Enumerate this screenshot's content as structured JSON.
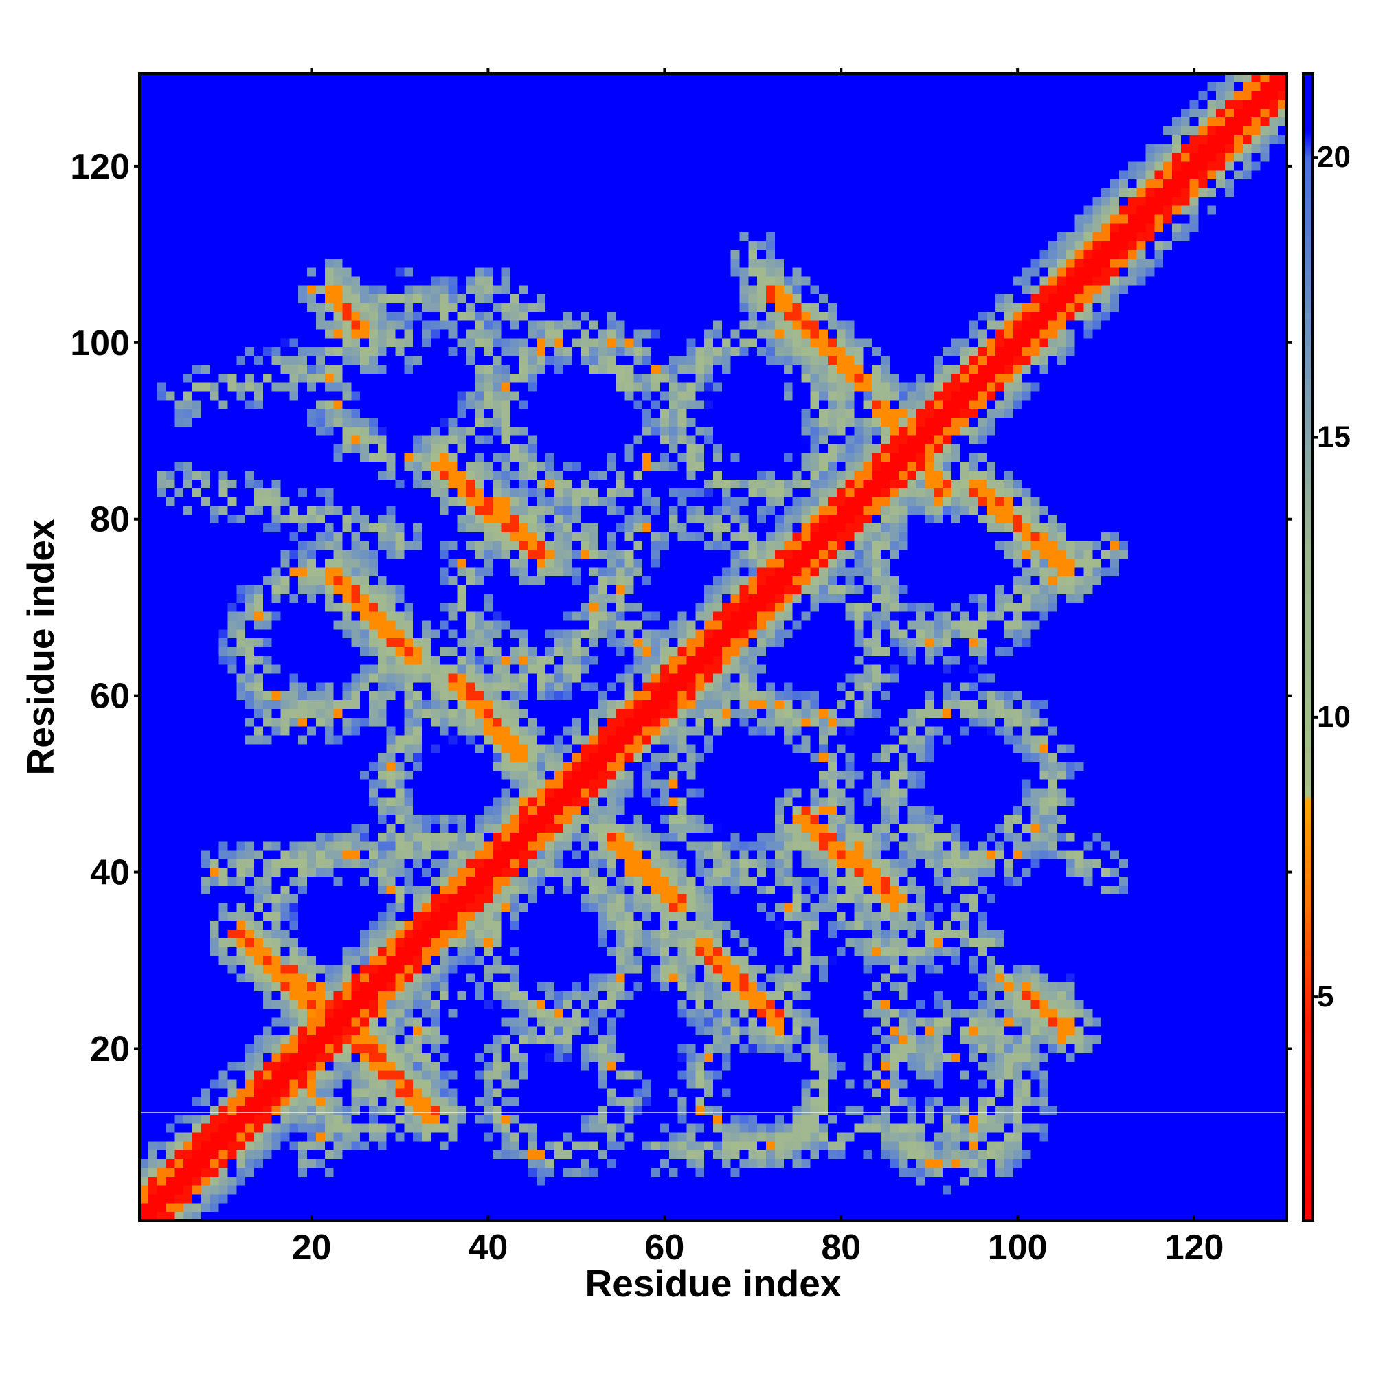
{
  "chart_data": {
    "type": "heatmap",
    "title": "",
    "xlabel": "Residue index",
    "ylabel": "Residue index",
    "n_residues": 130,
    "xlim": [
      1,
      130
    ],
    "ylim": [
      1,
      130
    ],
    "x_ticks": [
      20,
      40,
      60,
      80,
      100,
      120
    ],
    "y_ticks": [
      20,
      40,
      60,
      80,
      100,
      120
    ],
    "colorbar": {
      "ticks": [
        5,
        10,
        15,
        20
      ],
      "range": [
        1,
        21.5
      ],
      "label": ""
    },
    "colorscale": [
      {
        "value": 1.0,
        "color": "#ff0000"
      },
      {
        "value": 4.5,
        "color": "#ff1a00"
      },
      {
        "value": 6.5,
        "color": "#ff7000"
      },
      {
        "value": 8.5,
        "color": "#ffa500"
      },
      {
        "value": 8.6,
        "color": "#a8bf8a"
      },
      {
        "value": 13.0,
        "color": "#9fb692"
      },
      {
        "value": 17.0,
        "color": "#6f93c2"
      },
      {
        "value": 20.0,
        "color": "#4a6fe0"
      },
      {
        "value": 20.5,
        "color": "#0000ff"
      },
      {
        "value": 21.5,
        "color": "#0000ff"
      }
    ],
    "background_value": 21.5,
    "diagonal_band": {
      "core_halfwidth": 1.2,
      "orange_halfwidth": 2.2,
      "halo_halfwidth": 5.0
    },
    "loops": [
      {
        "cx": 31,
        "cy": 96,
        "r": 9
      },
      {
        "cx": 21,
        "cy": 66,
        "r": 8
      },
      {
        "cx": 23,
        "cy": 34,
        "r": 8
      },
      {
        "cx": 26,
        "cy": 18,
        "r": 7
      },
      {
        "cx": 51,
        "cy": 92,
        "r": 9
      },
      {
        "cx": 45,
        "cy": 72,
        "r": 8
      },
      {
        "cx": 37,
        "cy": 50,
        "r": 8
      },
      {
        "cx": 48,
        "cy": 32,
        "r": 8
      },
      {
        "cx": 48,
        "cy": 15,
        "r": 7
      },
      {
        "cx": 71,
        "cy": 92,
        "r": 9
      },
      {
        "cx": 63,
        "cy": 72,
        "r": 8
      },
      {
        "cx": 70,
        "cy": 50,
        "r": 9
      },
      {
        "cx": 68,
        "cy": 32,
        "r": 8
      },
      {
        "cx": 71,
        "cy": 16,
        "r": 7
      },
      {
        "cx": 76,
        "cy": 65,
        "r": 8
      },
      {
        "cx": 93,
        "cy": 75,
        "r": 9
      },
      {
        "cx": 95,
        "cy": 50,
        "r": 9
      },
      {
        "cx": 92,
        "cy": 26,
        "r": 7
      },
      {
        "cx": 93,
        "cy": 15,
        "r": 8
      },
      {
        "cx": 87,
        "cy": 38,
        "r": 7
      }
    ],
    "contact_lines": [
      {
        "x": [
          12,
          28
        ],
        "y": [
          33,
          18
        ],
        "width": 1.2
      },
      {
        "x": [
          24,
          34
        ],
        "y": [
          23,
          12
        ],
        "width": 1.0
      },
      {
        "x": [
          22,
          32
        ],
        "y": [
          74,
          64
        ],
        "width": 1.0
      },
      {
        "x": [
          35,
          46
        ],
        "y": [
          86,
          76
        ],
        "width": 1.1
      },
      {
        "x": [
          36,
          44
        ],
        "y": [
          62,
          53
        ],
        "width": 1.0
      },
      {
        "x": [
          54,
          62
        ],
        "y": [
          44,
          36
        ],
        "width": 1.0
      },
      {
        "x": [
          64,
          73
        ],
        "y": [
          32,
          23
        ],
        "width": 1.0
      },
      {
        "x": [
          76,
          86
        ],
        "y": [
          46,
          37
        ],
        "width": 1.1
      },
      {
        "x": [
          72,
          83
        ],
        "y": [
          106,
          95
        ],
        "width": 1.0
      },
      {
        "x": [
          84,
          92
        ],
        "y": [
          93,
          83
        ],
        "width": 1.0
      },
      {
        "x": [
          95,
          106
        ],
        "y": [
          84,
          74
        ],
        "width": 1.0
      },
      {
        "x": [
          22,
          26
        ],
        "y": [
          106,
          101
        ],
        "width": 0.8
      },
      {
        "x": [
          101,
          106
        ],
        "y": [
          26,
          22
        ],
        "width": 0.7
      }
    ],
    "halo_lines": [
      {
        "x": [
          6,
          30
        ],
        "y": [
          94,
          100
        ],
        "width": 3.5
      },
      {
        "x": [
          5,
          30
        ],
        "y": [
          84,
          78
        ],
        "width": 3.0
      },
      {
        "x": [
          15,
          50
        ],
        "y": [
          57,
          63
        ],
        "width": 3.0
      },
      {
        "x": [
          10,
          40
        ],
        "y": [
          40,
          44
        ],
        "width": 3.0
      },
      {
        "x": [
          20,
          35
        ],
        "y": [
          8,
          25
        ],
        "width": 3.0
      },
      {
        "x": [
          60,
          96
        ],
        "y": [
          8,
          12
        ],
        "width": 3.0
      },
      {
        "x": [
          95,
          104
        ],
        "y": [
          10,
          26
        ],
        "width": 3.0
      },
      {
        "x": [
          100,
          110
        ],
        "y": [
          46,
          40
        ],
        "width": 3.0
      },
      {
        "x": [
          90,
          110
        ],
        "y": [
          66,
          76
        ],
        "width": 2.5
      },
      {
        "x": [
          70,
          78
        ],
        "y": [
          110,
          92
        ],
        "width": 3.0
      },
      {
        "x": [
          40,
          56
        ],
        "y": [
          106,
          96
        ],
        "width": 3.0
      }
    ]
  }
}
